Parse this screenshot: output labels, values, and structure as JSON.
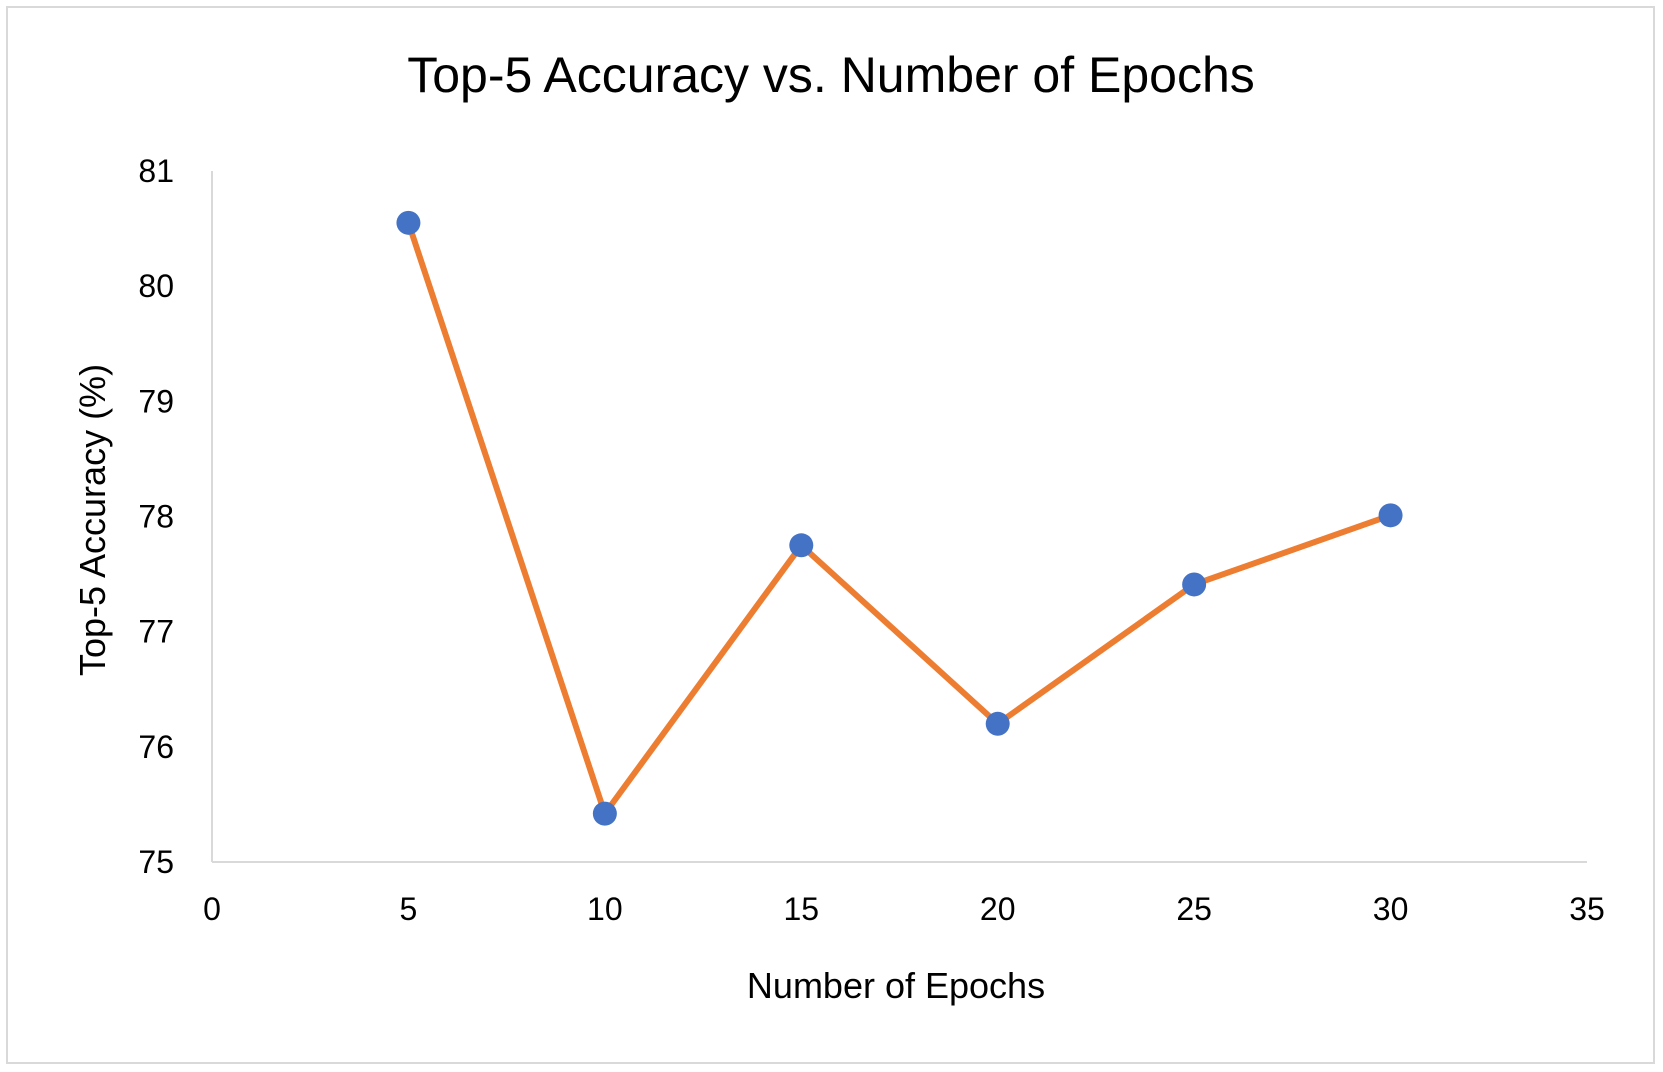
{
  "chart_data": {
    "type": "line",
    "title": "Top-5 Accuracy vs. Number of Epochs",
    "xlabel": "Number of Epochs",
    "ylabel": "Top-5 Accuracy (%)",
    "xlim": [
      0,
      35
    ],
    "ylim": [
      75,
      81
    ],
    "xticks": [
      0,
      5,
      10,
      15,
      20,
      25,
      30,
      35
    ],
    "yticks": [
      75,
      76,
      77,
      78,
      79,
      80,
      81
    ],
    "grid": false,
    "legend": "none",
    "line_color": "#ED7D31",
    "marker_color": "#4472C4",
    "axis_color": "#d9d9d9",
    "series": [
      {
        "x": [
          5,
          10,
          15,
          20,
          25,
          30
        ],
        "y": [
          80.55,
          75.42,
          77.75,
          76.2,
          77.41,
          78.01
        ]
      }
    ]
  }
}
